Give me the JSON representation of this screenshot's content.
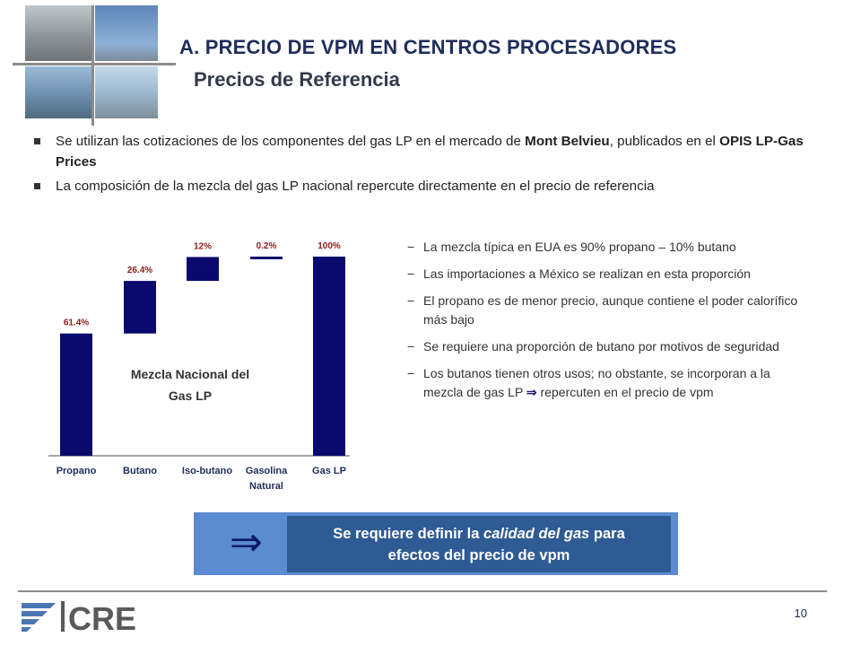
{
  "header": {
    "title": "A. PRECIO DE VPM EN CENTROS PROCESADORES",
    "subtitle": "Precios de Referencia"
  },
  "bullets": [
    {
      "pre": "Se utilizan las cotizaciones de los componentes del gas LP en el mercado de ",
      "bold1": "Mont Belvieu",
      "mid": ", publicados en el ",
      "bold2": "OPIS LP-Gas Prices",
      "post": ""
    },
    {
      "pre": "La composición de la mezcla del gas LP nacional repercute directamente en el precio de referencia",
      "bold1": "",
      "mid": "",
      "bold2": "",
      "post": ""
    }
  ],
  "chart_data": {
    "type": "bar",
    "subtype": "waterfall",
    "categories": [
      "Propano",
      "Butano",
      "Iso-butano",
      "Gasolina Natural",
      "Gas LP"
    ],
    "category_lines": [
      [
        "Propano"
      ],
      [
        "Butano"
      ],
      [
        "Iso-butano"
      ],
      [
        "Gasolina",
        "Natural"
      ],
      [
        "Gas LP"
      ]
    ],
    "values": [
      61.4,
      26.4,
      12,
      0.2,
      100
    ],
    "value_labels": [
      "61.4%",
      "26.4%",
      "12%",
      "0.2%",
      "100%"
    ],
    "annotation": [
      "Mezcla Nacional del",
      "Gas LP"
    ],
    "ylim": [
      0,
      100
    ],
    "bar_color": "#0a0a6e",
    "label_color": "#8b1a1a"
  },
  "notes": [
    "La mezcla típica en EUA es 90% propano – 10% butano",
    "Las importaciones a México se realizan en esta proporción",
    "El propano es de menor precio, aunque contiene el poder calorífico más bajo",
    "Se requiere una proporción de butano por motivos de seguridad"
  ],
  "note_last": {
    "pre": "Los butanos tienen otros usos; no obstante, se incorporan a la mezcla de gas LP",
    "arrow": "⇒",
    "post": "repercuten en el precio de vpm"
  },
  "note_dash": "−",
  "callout": {
    "arrow": "⇒",
    "line1_pre": "Se requiere definir la ",
    "line1_italic": "calidad del gas",
    "line1_post": " para",
    "line2": "efectos del precio de vpm"
  },
  "logo_text": "CRE",
  "page_number": "10",
  "colors": {
    "title": "#1f2d5a",
    "callout_outer": "#5b8bd0",
    "callout_inner": "#2f5b94"
  }
}
